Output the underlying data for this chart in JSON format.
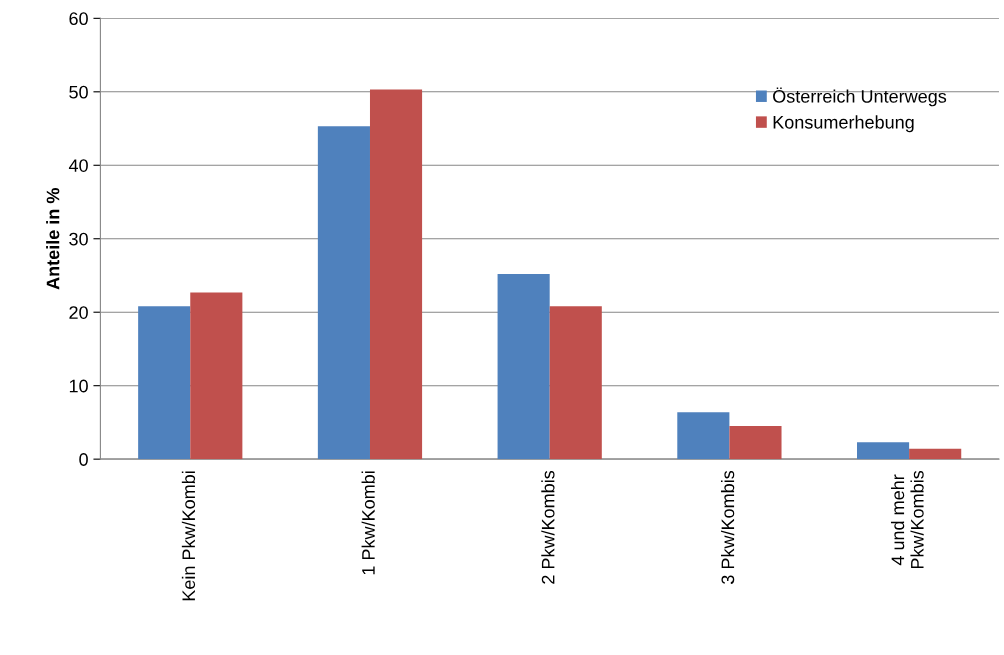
{
  "chart_data": {
    "type": "bar",
    "ylabel": "Anteile in %",
    "categories": [
      "Kein Pkw/Kombi",
      "1 Pkw/Kombi",
      "2 Pkw/Kombis",
      "3 Pkw/Kombis",
      "4 und mehr\nPkw/Kombis"
    ],
    "series": [
      {
        "name": "Österreich Unterwegs",
        "color": "#4f81bd",
        "values": [
          20.8,
          45.3,
          25.2,
          6.4,
          2.3
        ]
      },
      {
        "name": "Konsumerhebung",
        "color": "#c0504d",
        "values": [
          22.7,
          50.3,
          20.8,
          4.5,
          1.4
        ]
      }
    ],
    "ylim": [
      0,
      60
    ],
    "yticks": [
      0,
      10,
      20,
      30,
      40,
      50,
      60
    ],
    "grid": "y",
    "legend": "top right"
  }
}
